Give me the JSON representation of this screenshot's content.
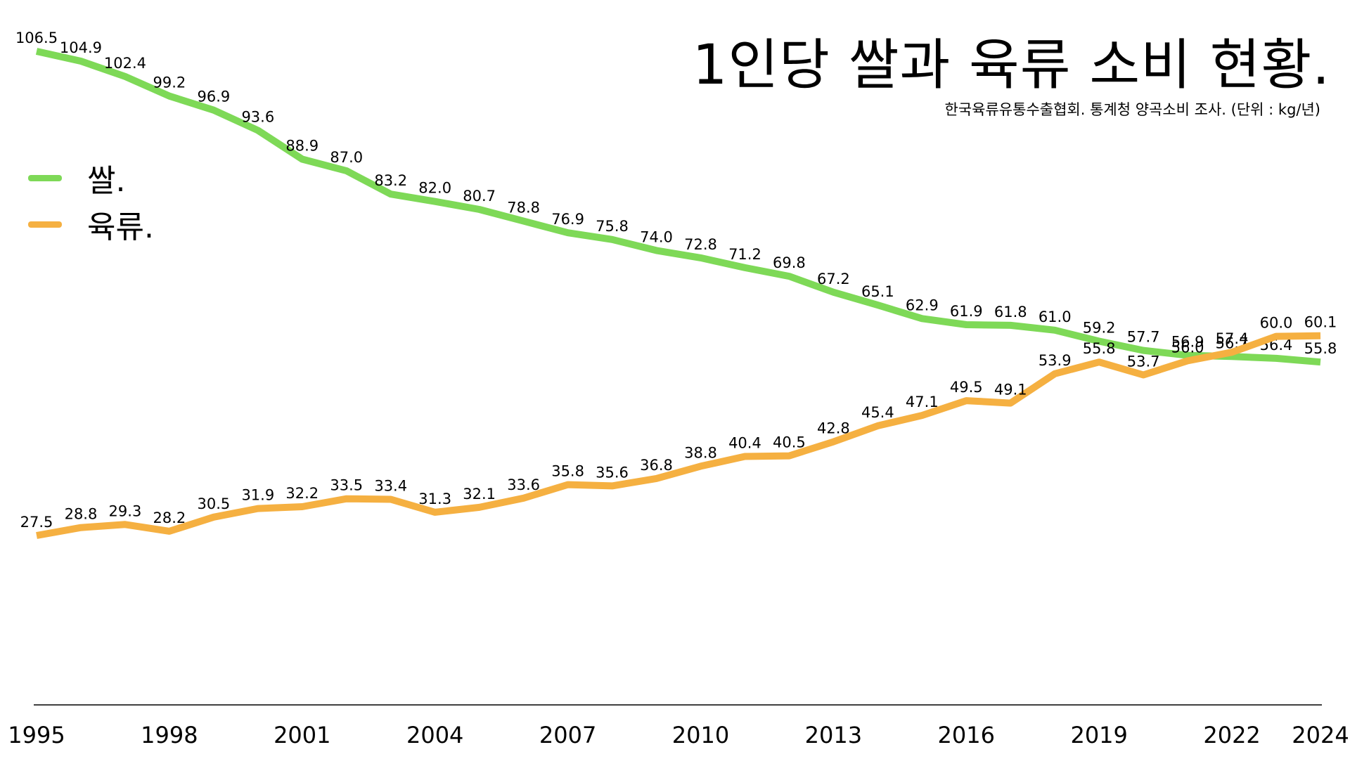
{
  "chart_data": {
    "type": "line",
    "title": "1인당 쌀과 육류 소비 현황.",
    "subtitle": "한국육류유통수출협회. 통계청 양곡소비 조사. (단위 : kg/년)",
    "xlabel": "",
    "ylabel": "",
    "x": [
      1995,
      1996,
      1997,
      1998,
      1999,
      2000,
      2001,
      2002,
      2003,
      2004,
      2005,
      2006,
      2007,
      2008,
      2009,
      2010,
      2011,
      2012,
      2013,
      2014,
      2015,
      2016,
      2017,
      2018,
      2019,
      2020,
      2021,
      2022,
      2023,
      2024
    ],
    "x_ticks": [
      "1995",
      "1998",
      "2001",
      "2004",
      "2007",
      "2010",
      "2013",
      "2016",
      "2019",
      "2022",
      "2024"
    ],
    "ylim": [
      0,
      115
    ],
    "grid": false,
    "legend": "left",
    "series": [
      {
        "name": "쌀.",
        "color": "#7ed957",
        "values": [
          106.5,
          104.9,
          102.4,
          99.2,
          96.9,
          93.6,
          88.9,
          87.0,
          83.2,
          82.0,
          80.7,
          78.8,
          76.9,
          75.8,
          74.0,
          72.8,
          71.2,
          69.8,
          67.2,
          65.1,
          62.9,
          61.9,
          61.8,
          61.0,
          59.2,
          57.7,
          56.9,
          56.7,
          56.4,
          55.8
        ]
      },
      {
        "name": "육류.",
        "color": "#f5b041",
        "values": [
          27.5,
          28.8,
          29.3,
          28.2,
          30.5,
          31.9,
          32.2,
          33.5,
          33.4,
          31.3,
          32.1,
          33.6,
          35.8,
          35.6,
          36.8,
          38.8,
          40.4,
          40.5,
          42.8,
          45.4,
          47.1,
          49.5,
          49.1,
          53.9,
          55.8,
          53.7,
          56.0,
          57.4,
          60.0,
          60.1
        ]
      }
    ]
  }
}
